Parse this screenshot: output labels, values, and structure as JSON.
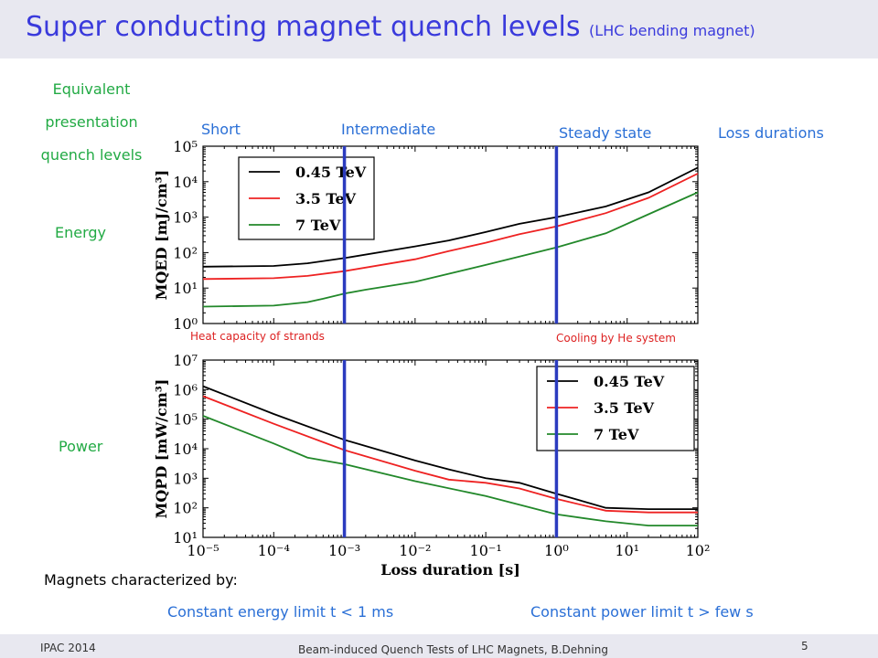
{
  "slide": {
    "title_main": "Super conducting magnet quench levels",
    "title_sub": "(LHC bending magnet)",
    "left_heading": [
      "Equivalent",
      "presentation",
      "quench levels"
    ],
    "label_energy": "Energy",
    "label_power": "Power",
    "regime_short": "Short",
    "regime_intermediate": "Intermediate",
    "regime_steady": "Steady state",
    "loss_durations": "Loss durations",
    "note_heat": "Heat capacity of strands",
    "note_cooling": "Cooling by He system",
    "characterized": "Magnets characterized by:",
    "constant_energy": "Constant energy limit t < 1 ms",
    "constant_power": "Constant power limit t > few s",
    "footer_left": "IPAC 2014",
    "footer_center": "Beam-induced Quench Tests of LHC Magnets, B.Dehning",
    "page_number": "5"
  },
  "colors": {
    "title": "#3a3adc",
    "green_text": "#22aa44",
    "blue_text": "#2a6fd6",
    "red_text": "#dd2222",
    "regime_lines": "#2b3bbf",
    "series": [
      "#000000",
      "#ee2222",
      "#22882a"
    ]
  },
  "chart_data": [
    {
      "type": "line",
      "log_x": true,
      "log_y": true,
      "ylabel": "MQED [mJ/cm³]",
      "xlabel": "",
      "xlim": [
        1e-05,
        100
      ],
      "ylim": [
        1,
        100000
      ],
      "yticks": [
        "10⁰",
        "10¹",
        "10²",
        "10³",
        "10⁴",
        "10⁵"
      ],
      "legend_position": "top-left",
      "vertical_lines": [
        0.001,
        1
      ],
      "series": [
        {
          "name": "0.45 TeV",
          "x": [
            1e-05,
            0.0001,
            0.0003,
            0.001,
            0.01,
            0.03,
            0.1,
            0.3,
            1,
            5,
            20,
            100
          ],
          "y": [
            40,
            42,
            50,
            70,
            150,
            220,
            380,
            650,
            1000,
            2000,
            5000,
            25000
          ]
        },
        {
          "name": "3.5 TeV",
          "x": [
            1e-05,
            0.0001,
            0.0003,
            0.001,
            0.01,
            0.03,
            0.1,
            0.3,
            1,
            5,
            20,
            100
          ],
          "y": [
            18,
            19,
            22,
            30,
            65,
            110,
            190,
            330,
            550,
            1300,
            3500,
            17000
          ]
        },
        {
          "name": "7 TeV",
          "x": [
            1e-05,
            0.0001,
            0.0003,
            0.0005,
            0.001,
            0.002,
            0.01,
            0.1,
            1,
            5,
            20,
            100
          ],
          "y": [
            3,
            3.2,
            4,
            5,
            7,
            9,
            15,
            45,
            140,
            350,
            1200,
            5000
          ]
        }
      ]
    },
    {
      "type": "line",
      "log_x": true,
      "log_y": true,
      "ylabel": "MQPD [mW/cm³]",
      "xlabel": "Loss duration [s]",
      "xlim": [
        1e-05,
        100
      ],
      "ylim": [
        10,
        10000000
      ],
      "xticks": [
        "10⁻⁵",
        "10⁻⁴",
        "10⁻³",
        "10⁻²",
        "10⁻¹",
        "10⁰",
        "10¹",
        "10²"
      ],
      "yticks": [
        "10¹",
        "10²",
        "10³",
        "10⁴",
        "10⁵",
        "10⁶",
        "10⁷"
      ],
      "legend_position": "top-right",
      "vertical_lines": [
        0.001,
        1
      ],
      "series": [
        {
          "name": "0.45 TeV",
          "x": [
            1e-05,
            0.0001,
            0.001,
            0.01,
            0.03,
            0.1,
            0.3,
            1,
            5,
            20,
            100
          ],
          "y": [
            1300000,
            150000,
            20000,
            4000,
            2000,
            1000,
            700,
            300,
            100,
            90,
            90
          ]
        },
        {
          "name": "3.5 TeV",
          "x": [
            1e-05,
            0.0001,
            0.001,
            0.01,
            0.03,
            0.1,
            0.3,
            1,
            5,
            20,
            100
          ],
          "y": [
            600000,
            70000,
            9000,
            1800,
            900,
            700,
            450,
            200,
            80,
            70,
            70
          ]
        },
        {
          "name": "7 TeV",
          "x": [
            1e-05,
            0.0001,
            0.0003,
            0.001,
            0.003,
            0.01,
            0.1,
            1,
            5,
            20,
            100
          ],
          "y": [
            130000,
            15000,
            5000,
            3000,
            1600,
            800,
            250,
            60,
            35,
            25,
            25
          ]
        }
      ]
    }
  ]
}
